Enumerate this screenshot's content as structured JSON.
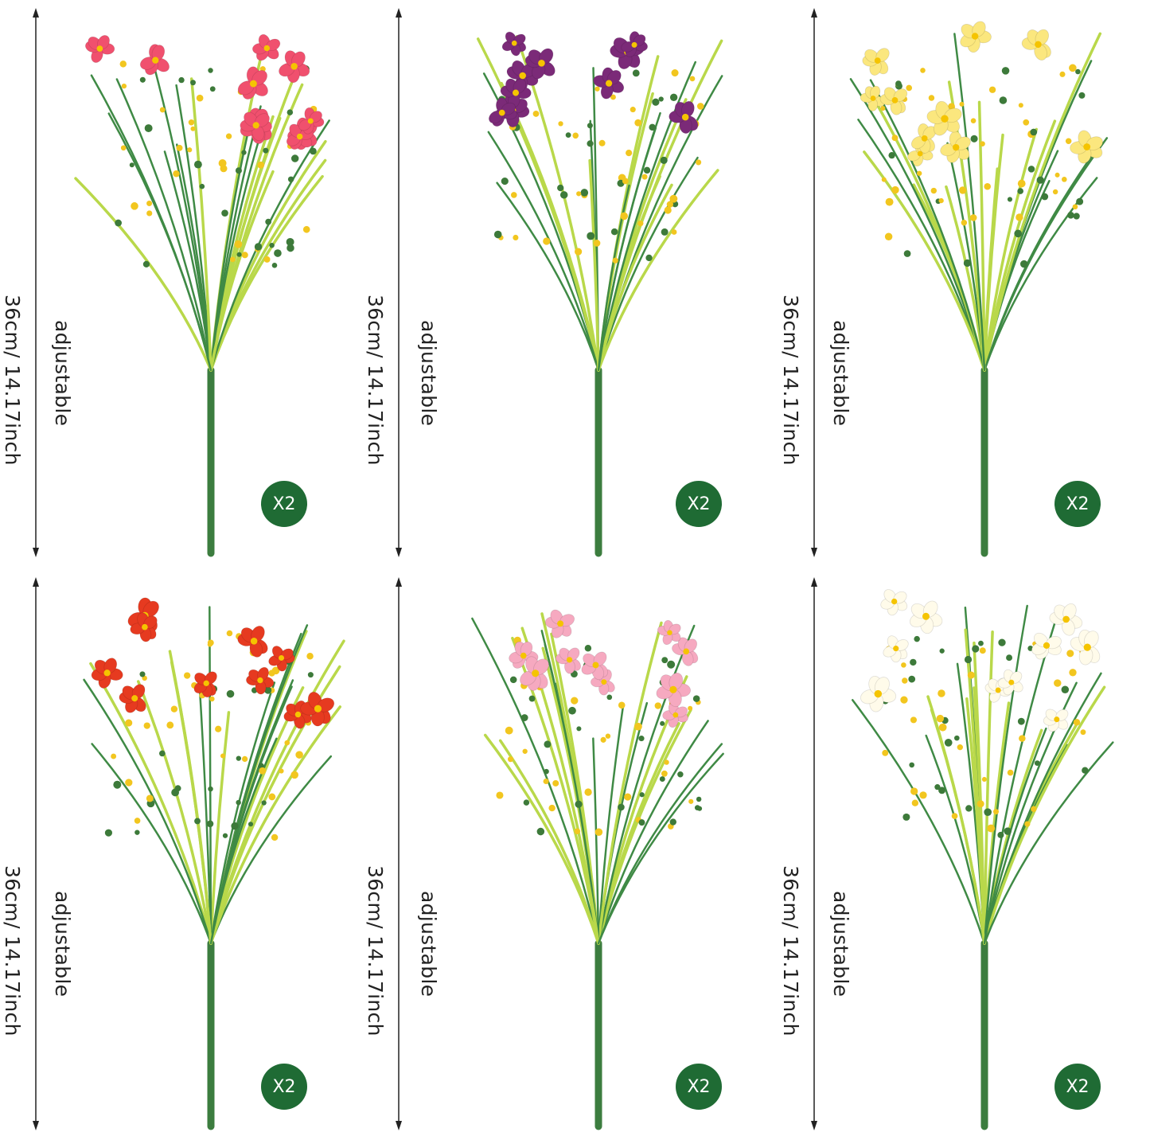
{
  "panels": [
    {
      "color": "pink-red",
      "flower_hex": "#f0506e",
      "size_label": "36cm/ 14.17inch",
      "adjust_label": "adjustable",
      "quantity": "X2"
    },
    {
      "color": "purple",
      "flower_hex": "#7b2a78",
      "size_label": "36cm/ 14.17inch",
      "adjust_label": "adjustable",
      "quantity": "X2"
    },
    {
      "color": "yellow",
      "flower_hex": "#fbe77e",
      "size_label": "36cm/ 14.17inch",
      "adjust_label": "adjustable",
      "quantity": "X2"
    },
    {
      "color": "red",
      "flower_hex": "#e63a20",
      "size_label": "36cm/ 14.17inch",
      "adjust_label": "adjustable",
      "quantity": "X2"
    },
    {
      "color": "light-pink",
      "flower_hex": "#f6a9c0",
      "size_label": "36cm/ 14.17inch",
      "adjust_label": "adjustable",
      "quantity": "X2"
    },
    {
      "color": "white",
      "flower_hex": "#fffbea",
      "size_label": "36cm/ 14.17inch",
      "adjust_label": "adjustable",
      "quantity": "X2"
    }
  ],
  "colors": {
    "badge": "#1f6b34",
    "stem": "#3f8a45",
    "leaf": "#b9d84a",
    "bud": "#f2c61f",
    "arrow": "#222222"
  }
}
